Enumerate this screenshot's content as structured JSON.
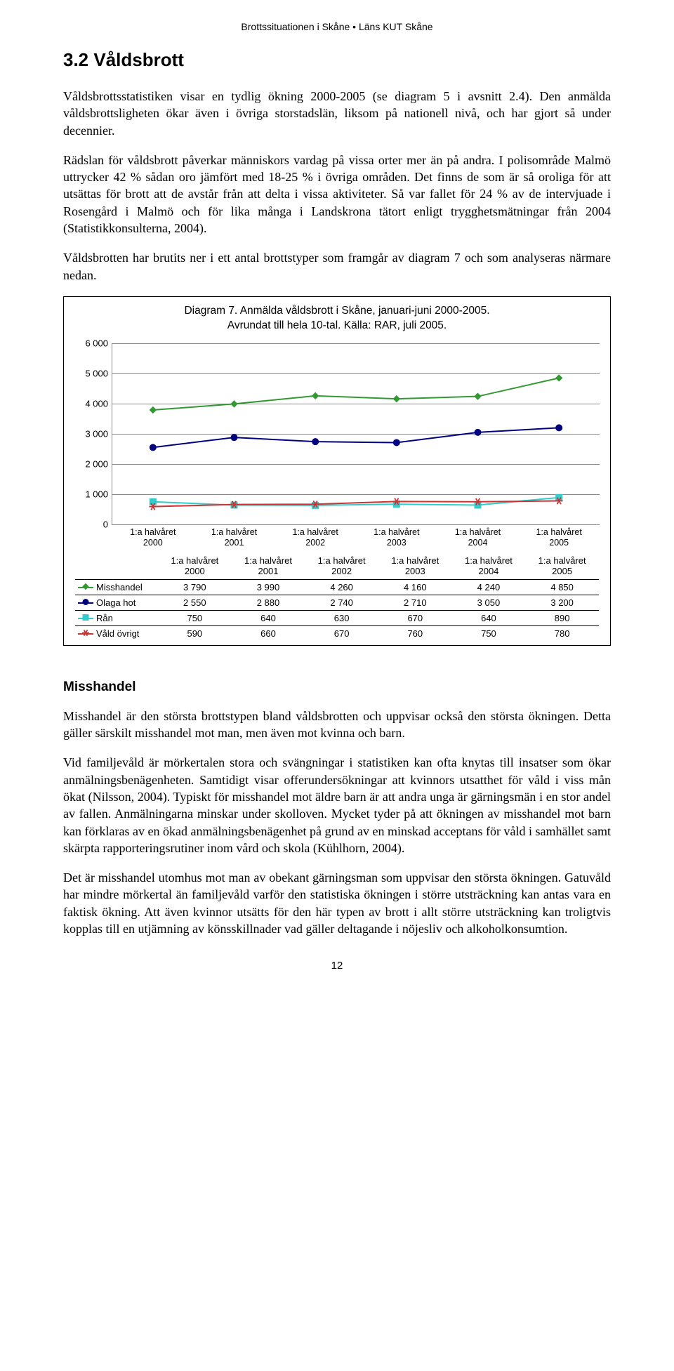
{
  "header": "Brottssituationen i Skåne • Läns KUT Skåne",
  "section_title": "3.2 Våldsbrott",
  "para1": "Våldsbrottsstatistiken visar en tydlig ökning 2000-2005 (se diagram 5 i avsnitt 2.4). Den anmälda våldsbrottsligheten ökar även i övriga storstadslän, liksom på nationell nivå, och har gjort så under decennier.",
  "para2": "Rädslan för våldsbrott påverkar människors vardag på vissa orter mer än på andra. I polisområde Malmö uttrycker 42 % sådan oro jämfört med 18-25 % i övriga områden. Det finns de som är så oroliga för att utsättas för brott att de avstår från att delta i vissa aktiviteter. Så var fallet för 24 % av de intervjuade i Rosengård i Malmö och för lika många i Landskrona tätort enligt trygghetsmätningar från 2004 (Statistikkonsulterna, 2004).",
  "para3": "Våldsbrotten har brutits ner i ett antal brottstyper som framgår av diagram 7 och som analyseras närmare nedan.",
  "chart": {
    "type": "line",
    "title_line1": "Diagram 7. Anmälda våldsbrott i Skåne, januari-juni 2000-2005.",
    "title_line2": "Avrundat till hela 10-tal. Källa: RAR, juli 2005.",
    "categories": [
      "1:a halvåret 2000",
      "1:a halvåret 2001",
      "1:a halvåret 2002",
      "1:a halvåret 2003",
      "1:a halvåret 2004",
      "1:a halvåret 2005"
    ],
    "categories_line1": [
      "1:a halvåret",
      "1:a halvåret",
      "1:a halvåret",
      "1:a halvåret",
      "1:a halvåret",
      "1:a halvåret"
    ],
    "categories_line2": [
      "2000",
      "2001",
      "2002",
      "2003",
      "2004",
      "2005"
    ],
    "ylim": [
      0,
      6000
    ],
    "ytick_step": 1000,
    "yticks": [
      0,
      1000,
      2000,
      3000,
      4000,
      5000,
      6000
    ],
    "ytick_labels": [
      "0",
      "1 000",
      "2 000",
      "3 000",
      "4 000",
      "5 000",
      "6 000"
    ],
    "grid_color": "#888888",
    "background_color": "#ffffff",
    "series": [
      {
        "name": "Misshandel",
        "color": "#339933",
        "marker": "diamond",
        "values": [
          3790,
          3990,
          4260,
          4160,
          4240,
          4850
        ],
        "value_labels": [
          "3 790",
          "3 990",
          "4 260",
          "4 160",
          "4 240",
          "4 850"
        ]
      },
      {
        "name": "Olaga hot",
        "color": "#000080",
        "marker": "circle",
        "values": [
          2550,
          2880,
          2740,
          2710,
          3050,
          3200
        ],
        "value_labels": [
          "2 550",
          "2 880",
          "2 740",
          "2 710",
          "3 050",
          "3 200"
        ]
      },
      {
        "name": "Rån",
        "color": "#33cccc",
        "marker": "square",
        "values": [
          750,
          640,
          630,
          670,
          640,
          890
        ],
        "value_labels": [
          "750",
          "640",
          "630",
          "670",
          "640",
          "890"
        ]
      },
      {
        "name": "Våld övrigt",
        "color": "#cc3333",
        "marker": "star",
        "values": [
          590,
          660,
          670,
          760,
          750,
          780
        ],
        "value_labels": [
          "590",
          "660",
          "670",
          "760",
          "750",
          "780"
        ]
      }
    ]
  },
  "sub_heading": "Misshandel",
  "para4": "Misshandel är den största brottstypen bland våldsbrotten och uppvisar också den största ökningen. Detta gäller särskilt misshandel mot man, men även mot kvinna och barn.",
  "para5": "Vid familjevåld är mörkertalen stora och svängningar i statistiken kan ofta knytas till insatser som ökar anmälningsbenägenheten. Samtidigt visar offerundersökningar att kvinnors utsatthet för våld i viss mån ökat (Nilsson, 2004). Typiskt för misshandel mot äldre barn är att andra unga är gärningsmän i en stor andel av fallen. Anmälningarna minskar under skolloven. Mycket tyder på att ökningen av misshandel mot barn kan förklaras av en ökad anmälningsbenägenhet på grund av en minskad acceptans för våld i samhället samt skärpta rapporteringsrutiner inom vård och skola (Kühlhorn, 2004).",
  "para6": "Det är misshandel utomhus mot man av obekant gärningsman som uppvisar den största ökningen. Gatuvåld har mindre mörkertal än familjevåld varför den statistiska ökningen i större utsträckning kan antas vara en faktisk ökning. Att även kvinnor utsätts för den här typen av brott i allt större utsträckning kan troligtvis kopplas till en utjämning av könsskillnader vad gäller deltagande i nöjesliv och alkoholkonsumtion.",
  "page_number": "12"
}
